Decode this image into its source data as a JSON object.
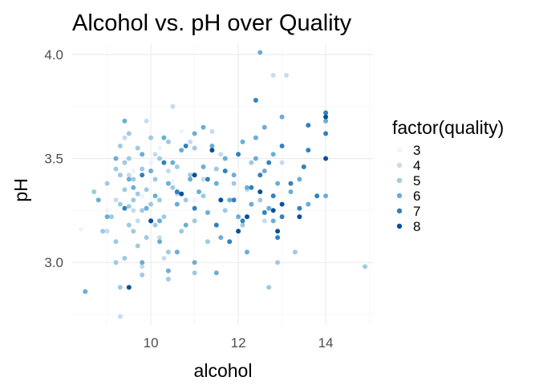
{
  "chart_data": {
    "type": "scatter",
    "title": "Alcohol vs. pH over Quality",
    "xlabel": "alcohol",
    "ylabel": "pH",
    "xlim": [
      8.2,
      15.1
    ],
    "ylim": [
      2.7,
      4.05
    ],
    "x_ticks": [
      10,
      12,
      14
    ],
    "y_ticks": [
      3.0,
      3.5,
      4.0
    ],
    "x_tick_labels": [
      "10",
      "12",
      "14"
    ],
    "y_tick_labels": [
      "3.0",
      "3.5",
      "4.0"
    ],
    "grid": true,
    "legend": {
      "title": "factor(quality)",
      "position": "right",
      "entries": [
        "3",
        "4",
        "5",
        "6",
        "7",
        "8"
      ]
    },
    "colors": {
      "3": "#eff3ff",
      "4": "#c6dbef",
      "5": "#9ecae1",
      "6": "#6baed6",
      "7": "#3182bd",
      "8": "#08519c"
    },
    "series": [
      {
        "name": "3",
        "points": [
          [
            8.4,
            3.16
          ],
          [
            9.0,
            3.25
          ],
          [
            9.8,
            3.32
          ],
          [
            10.0,
            3.48
          ],
          [
            10.2,
            3.55
          ],
          [
            10.5,
            3.39
          ],
          [
            10.7,
            3.63
          ],
          [
            11.0,
            3.3
          ],
          [
            9.6,
            3.44
          ]
        ]
      },
      {
        "name": "4",
        "points": [
          [
            9.0,
            3.15
          ],
          [
            9.2,
            3.3
          ],
          [
            9.4,
            3.6
          ],
          [
            9.5,
            3.42
          ],
          [
            9.7,
            3.2
          ],
          [
            9.9,
            3.68
          ],
          [
            10.1,
            3.52
          ],
          [
            10.2,
            3.12
          ],
          [
            10.4,
            3.44
          ],
          [
            10.6,
            3.33
          ],
          [
            10.9,
            3.58
          ],
          [
            11.2,
            3.4
          ],
          [
            11.4,
            3.63
          ],
          [
            12.2,
            3.35
          ],
          [
            12.6,
            3.2
          ],
          [
            12.8,
            3.9
          ],
          [
            13.0,
            3.48
          ],
          [
            13.1,
            3.9
          ],
          [
            9.3,
            2.74
          ],
          [
            9.6,
            3.25
          ],
          [
            10.5,
            3.75
          ],
          [
            11.6,
            3.52
          ],
          [
            9.8,
            2.98
          ],
          [
            10.3,
            3.02
          ]
        ]
      },
      {
        "name": "5",
        "points": [
          [
            9.0,
            3.38
          ],
          [
            9.1,
            3.22
          ],
          [
            9.2,
            3.45
          ],
          [
            9.2,
            3.1
          ],
          [
            9.3,
            3.56
          ],
          [
            9.3,
            3.28
          ],
          [
            9.4,
            3.35
          ],
          [
            9.4,
            3.02
          ],
          [
            9.5,
            3.5
          ],
          [
            9.5,
            3.18
          ],
          [
            9.5,
            3.62
          ],
          [
            9.6,
            3.3
          ],
          [
            9.6,
            3.4
          ],
          [
            9.7,
            3.08
          ],
          [
            9.7,
            3.55
          ],
          [
            9.8,
            3.25
          ],
          [
            9.8,
            3.45
          ],
          [
            9.9,
            3.12
          ],
          [
            9.9,
            3.35
          ],
          [
            10.0,
            3.6
          ],
          [
            10.0,
            3.28
          ],
          [
            10.1,
            3.4
          ],
          [
            10.1,
            3.18
          ],
          [
            10.2,
            3.5
          ],
          [
            10.2,
            3.3
          ],
          [
            10.3,
            3.22
          ],
          [
            10.4,
            3.58
          ],
          [
            10.4,
            3.05
          ],
          [
            10.5,
            3.36
          ],
          [
            10.6,
            3.46
          ],
          [
            10.7,
            3.15
          ],
          [
            10.8,
            3.3
          ],
          [
            10.9,
            3.42
          ],
          [
            11.0,
            3.2
          ],
          [
            11.0,
            3.55
          ],
          [
            11.2,
            3.32
          ],
          [
            11.3,
            3.1
          ],
          [
            11.5,
            3.45
          ],
          [
            11.7,
            3.25
          ],
          [
            11.9,
            3.38
          ],
          [
            12.1,
            3.18
          ],
          [
            12.3,
            3.48
          ],
          [
            12.5,
            3.3
          ],
          [
            9.5,
            3.27
          ],
          [
            9.6,
            3.15
          ],
          [
            9.3,
            3.42
          ],
          [
            9.4,
            3.48
          ],
          [
            9.7,
            3.33
          ],
          [
            8.7,
            3.34
          ],
          [
            8.9,
            3.15
          ],
          [
            9.3,
            2.88
          ],
          [
            9.8,
            2.94
          ],
          [
            10.4,
            2.92
          ],
          [
            11.0,
            2.95
          ],
          [
            12.9,
            3.0
          ],
          [
            13.3,
            3.05
          ],
          [
            14.9,
            2.98
          ],
          [
            12.7,
            2.88
          ],
          [
            9.2,
            3.0
          ]
        ]
      },
      {
        "name": "6",
        "points": [
          [
            8.5,
            2.86
          ],
          [
            8.8,
            3.3
          ],
          [
            9.0,
            3.22
          ],
          [
            9.2,
            3.5
          ],
          [
            9.4,
            3.68
          ],
          [
            9.5,
            3.4
          ],
          [
            9.6,
            3.36
          ],
          [
            9.8,
            3.52
          ],
          [
            9.9,
            3.26
          ],
          [
            10.0,
            3.44
          ],
          [
            10.1,
            3.32
          ],
          [
            10.2,
            3.2
          ],
          [
            10.3,
            3.6
          ],
          [
            10.4,
            3.38
          ],
          [
            10.5,
            3.48
          ],
          [
            10.6,
            3.28
          ],
          [
            10.7,
            3.54
          ],
          [
            10.8,
            3.18
          ],
          [
            10.9,
            3.4
          ],
          [
            11.0,
            3.62
          ],
          [
            11.1,
            3.34
          ],
          [
            11.2,
            3.46
          ],
          [
            11.3,
            3.24
          ],
          [
            11.4,
            3.56
          ],
          [
            11.5,
            3.38
          ],
          [
            11.6,
            3.12
          ],
          [
            11.7,
            3.5
          ],
          [
            11.8,
            3.3
          ],
          [
            11.9,
            3.42
          ],
          [
            12.0,
            3.22
          ],
          [
            12.1,
            3.58
          ],
          [
            12.2,
            3.36
          ],
          [
            12.3,
            3.28
          ],
          [
            12.4,
            3.6
          ],
          [
            12.5,
            4.01
          ],
          [
            12.6,
            3.44
          ],
          [
            12.7,
            3.26
          ],
          [
            12.8,
            3.52
          ],
          [
            12.9,
            3.38
          ],
          [
            13.0,
            3.7
          ],
          [
            13.2,
            3.34
          ],
          [
            13.4,
            3.4
          ],
          [
            13.6,
            3.28
          ],
          [
            14.0,
            3.68
          ],
          [
            14.0,
            3.32
          ],
          [
            10.2,
            3.1
          ],
          [
            10.6,
            3.05
          ],
          [
            11.0,
            3.0
          ],
          [
            12.4,
            3.5
          ],
          [
            12.8,
            3.2
          ],
          [
            9.8,
            3.0
          ],
          [
            10.4,
            2.96
          ],
          [
            11.5,
            2.95
          ],
          [
            12.2,
            3.05
          ],
          [
            12.6,
            3.65
          ],
          [
            11.2,
            3.65
          ]
        ]
      },
      {
        "name": "7",
        "points": [
          [
            9.4,
            3.26
          ],
          [
            9.8,
            3.42
          ],
          [
            10.0,
            3.2
          ],
          [
            10.3,
            3.48
          ],
          [
            10.6,
            3.34
          ],
          [
            10.8,
            3.56
          ],
          [
            11.0,
            3.26
          ],
          [
            11.3,
            3.4
          ],
          [
            11.5,
            3.18
          ],
          [
            11.7,
            3.44
          ],
          [
            11.9,
            3.3
          ],
          [
            12.0,
            3.52
          ],
          [
            12.1,
            3.2
          ],
          [
            12.3,
            3.36
          ],
          [
            12.4,
            3.78
          ],
          [
            12.5,
            3.42
          ],
          [
            12.6,
            3.24
          ],
          [
            12.7,
            3.48
          ],
          [
            12.8,
            3.32
          ],
          [
            13.0,
            3.56
          ],
          [
            13.0,
            3.22
          ],
          [
            13.2,
            3.38
          ],
          [
            13.4,
            3.26
          ],
          [
            13.5,
            3.46
          ],
          [
            13.6,
            3.54
          ],
          [
            13.6,
            3.66
          ],
          [
            13.8,
            3.32
          ],
          [
            14.0,
            3.62
          ],
          [
            14.0,
            3.72
          ],
          [
            12.9,
            3.12
          ],
          [
            11.8,
            3.1
          ]
        ]
      },
      {
        "name": "8",
        "points": [
          [
            9.5,
            2.88
          ],
          [
            10.0,
            3.2
          ],
          [
            11.0,
            3.42
          ],
          [
            11.6,
            3.3
          ],
          [
            12.2,
            3.22
          ],
          [
            12.5,
            3.34
          ],
          [
            12.8,
            3.25
          ],
          [
            12.9,
            3.15
          ],
          [
            13.0,
            3.28
          ],
          [
            13.4,
            3.22
          ],
          [
            14.0,
            3.7
          ],
          [
            14.0,
            3.5
          ],
          [
            11.4,
            3.54
          ],
          [
            10.7,
            3.33
          ],
          [
            12.0,
            3.15
          ]
        ]
      }
    ]
  }
}
